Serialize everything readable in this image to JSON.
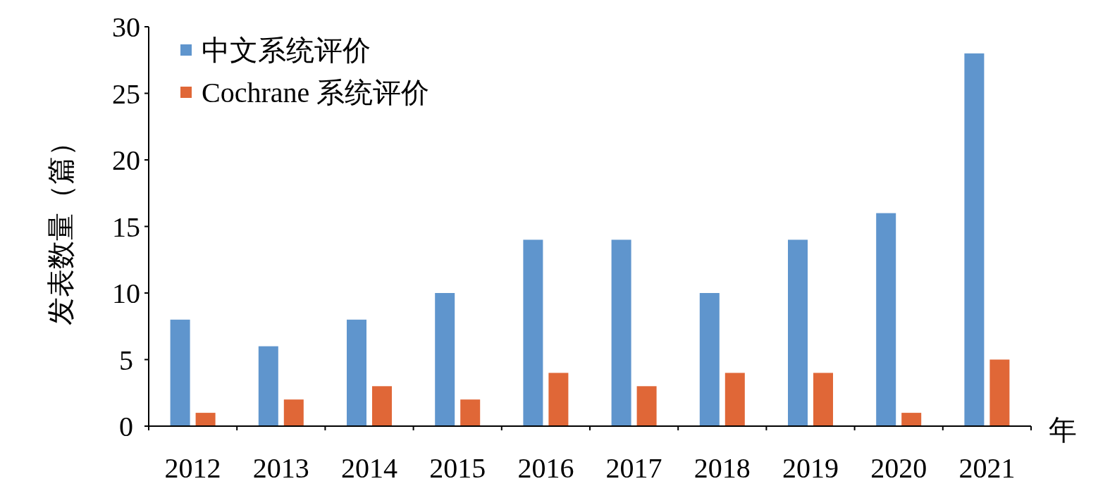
{
  "chart_data": {
    "type": "bar",
    "xlabel": "年",
    "ylabel": "发表数量（篇）",
    "categories": [
      "2012",
      "2013",
      "2014",
      "2015",
      "2016",
      "2017",
      "2018",
      "2019",
      "2020",
      "2021"
    ],
    "series": [
      {
        "name": "中文系统评价",
        "color": "#5f95cd",
        "values": [
          8,
          6,
          8,
          10,
          14,
          14,
          10,
          14,
          16,
          28
        ]
      },
      {
        "name": "Cochrane 系统评价",
        "color": "#e06737",
        "values": [
          1,
          2,
          3,
          2,
          4,
          3,
          4,
          4,
          1,
          5
        ]
      }
    ],
    "ylim": [
      0,
      30
    ],
    "yticks": [
      0,
      5,
      10,
      15,
      20,
      25,
      30
    ],
    "grid": false,
    "legend": "top left"
  }
}
